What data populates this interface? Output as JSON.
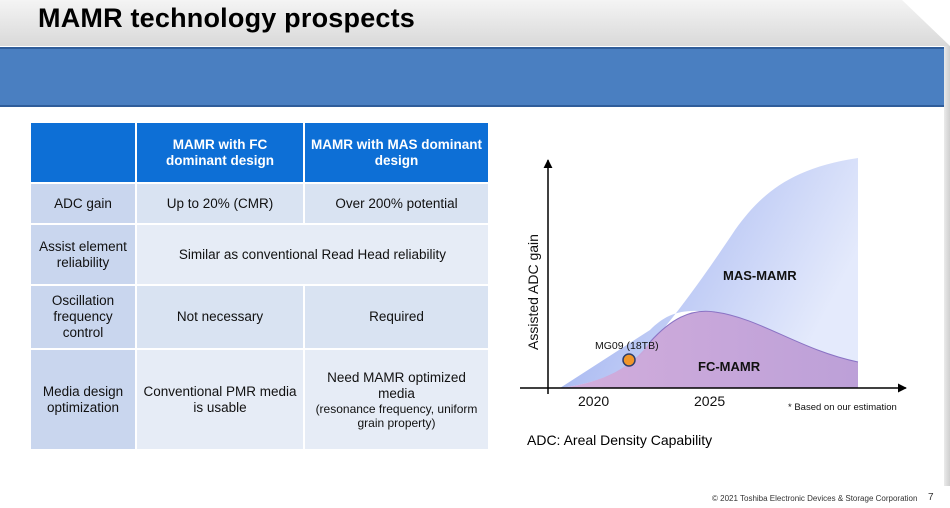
{
  "slide": {
    "title": "MAMR technology prospects",
    "page_number": "7",
    "copyright": "© 2021 Toshiba Electronic Devices & Storage Corporation",
    "adc_note": "ADC: Areal Density Capability"
  },
  "table": {
    "headers": [
      "",
      "MAMR with FC dominant design",
      "MAMR with MAS dominant design"
    ],
    "rows": {
      "adc": {
        "label": "ADC gain",
        "fc": "Up to 20% (CMR)",
        "mas": "Over 200% potential"
      },
      "assist": {
        "label": "Assist element reliability",
        "both": "Similar as conventional Read Head reliability"
      },
      "osc": {
        "label": "Oscillation frequency control",
        "fc": "Not necessary",
        "mas": "Required"
      },
      "media": {
        "label": "Media design optimization",
        "fc": "Conventional PMR media is usable",
        "mas": "Need MAMR optimized media",
        "mas_note": "(resonance frequency, uniform grain property)"
      }
    }
  },
  "chart_data": {
    "type": "area",
    "ylabel": "Assisted ADC gain",
    "xlabel": "",
    "x_ticks": [
      "2020",
      "2025"
    ],
    "series": [
      {
        "name": "MAS-MAMR",
        "color": "#8fa7ef"
      },
      {
        "name": "FC-MAMR",
        "color": "#c7a4d6"
      }
    ],
    "annotation": {
      "label": "MG09 (18TB)",
      "color": "#f0962a"
    },
    "footnote": "* Based on our estimation"
  }
}
